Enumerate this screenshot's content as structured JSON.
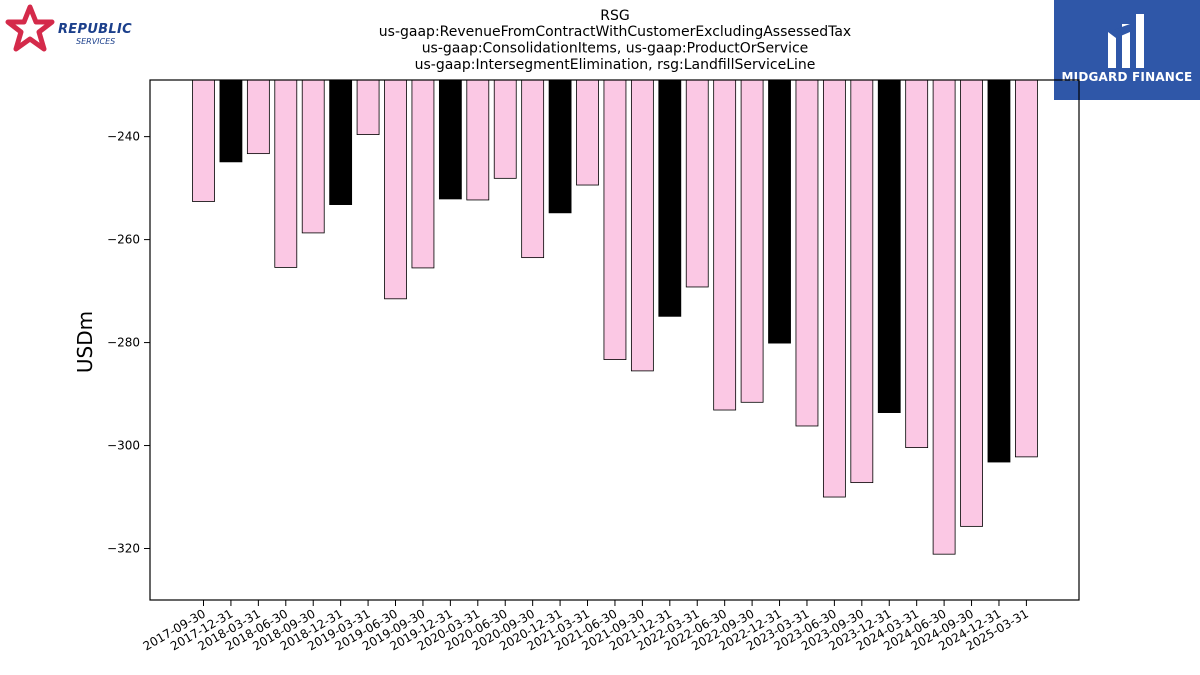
{
  "logos": {
    "left_name": "REPUBLIC",
    "left_sub": "SERVICES",
    "right_name": "MIDGARD FINANCE"
  },
  "chart_data": {
    "type": "bar",
    "title": "RSG",
    "subtitle_lines": [
      "us-gaap:RevenueFromContractWithCustomerExcludingAssessedTax",
      "us-gaap:ConsolidationItems, us-gaap:ProductOrService",
      "us-gaap:IntersegmentElimination, rsg:LandfillServiceLine"
    ],
    "xlabel": "",
    "ylabel": "USDm",
    "ylim": [
      -330,
      -229
    ],
    "yticks": [
      -240,
      -260,
      -280,
      -300,
      -320
    ],
    "grid": false,
    "colors": {
      "default": "#fbc8e4",
      "q4": "#000000",
      "edge": "#000000"
    },
    "categories": [
      "2017-09-30",
      "2017-12-31",
      "2018-03-31",
      "2018-06-30",
      "2018-09-30",
      "2018-12-31",
      "2019-03-31",
      "2019-06-30",
      "2019-09-30",
      "2019-12-31",
      "2020-03-31",
      "2020-06-30",
      "2020-09-30",
      "2020-12-31",
      "2021-03-31",
      "2021-06-30",
      "2021-09-30",
      "2021-12-31",
      "2022-03-31",
      "2022-06-30",
      "2022-09-30",
      "2022-12-31",
      "2023-03-31",
      "2023-06-30",
      "2023-09-30",
      "2023-12-31",
      "2024-03-31",
      "2024-06-30",
      "2024-09-30",
      "2024-12-31",
      "2025-03-31"
    ],
    "values": [
      -252.6,
      -244.9,
      -243.3,
      -265.4,
      -258.7,
      -253.2,
      -239.6,
      -271.5,
      -265.5,
      -252.1,
      -252.3,
      -248.1,
      -263.5,
      -254.8,
      -249.4,
      -283.3,
      -285.5,
      -274.9,
      -269.2,
      -293.1,
      -291.6,
      -280.1,
      -296.2,
      -310.0,
      -307.2,
      -293.6,
      -300.4,
      -321.1,
      -315.7,
      -303.2,
      -302.2
    ],
    "highlight": [
      false,
      true,
      false,
      false,
      false,
      true,
      false,
      false,
      false,
      true,
      false,
      false,
      false,
      true,
      false,
      false,
      false,
      true,
      false,
      false,
      false,
      true,
      false,
      false,
      false,
      true,
      false,
      false,
      false,
      true,
      false
    ]
  }
}
